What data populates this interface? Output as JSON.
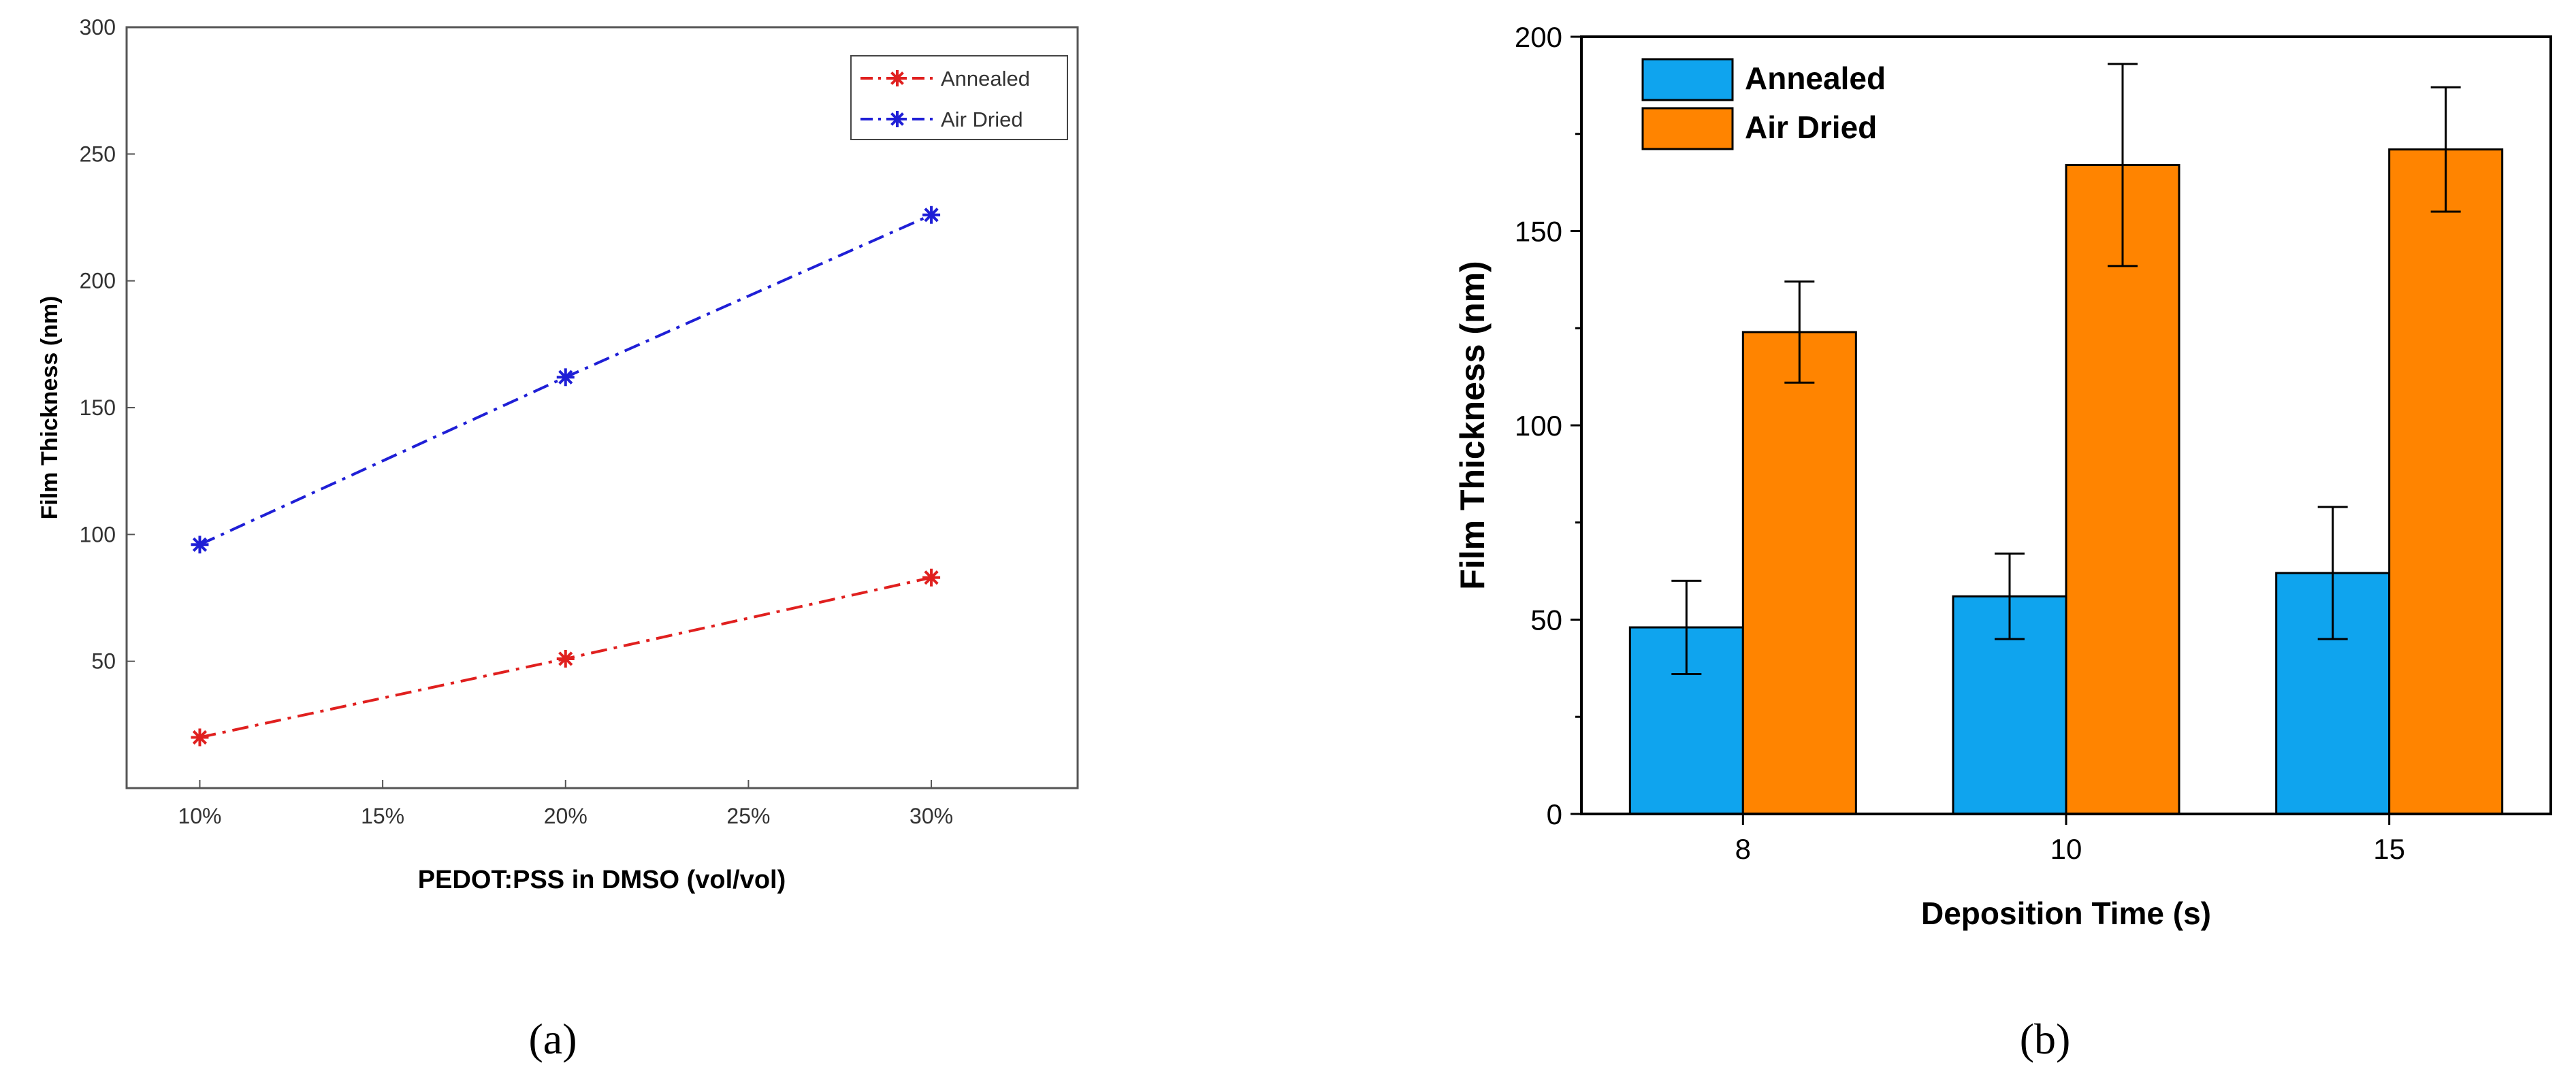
{
  "figure": {
    "caption_a": "(a)",
    "caption_b": "(b)"
  },
  "chart_data": [
    {
      "type": "line",
      "xlabel": "PEDOT:PSS in DMSO (vol/vol)",
      "ylabel": "Film Thickness (nm)",
      "x_ticks": [
        "10%",
        "15%",
        "20%",
        "25%",
        "30%"
      ],
      "x_tick_values": [
        10,
        15,
        20,
        25,
        30
      ],
      "xlim": [
        8,
        34
      ],
      "y_ticks": [
        50,
        100,
        150,
        200,
        250,
        300
      ],
      "ylim": [
        0,
        300
      ],
      "legend_position": "top-right",
      "series": [
        {
          "name": "Annealed",
          "color": "#e0201f",
          "x": [
            10,
            20,
            30
          ],
          "values": [
            20,
            51,
            83
          ]
        },
        {
          "name": "Air Dried",
          "color": "#1f1fd6",
          "x": [
            10,
            20,
            30
          ],
          "values": [
            96,
            162,
            226
          ]
        }
      ]
    },
    {
      "type": "bar",
      "xlabel": "Deposition Time (s)",
      "ylabel": "Film Thickness (nm)",
      "categories": [
        "8",
        "10",
        "15"
      ],
      "y_ticks": [
        0,
        50,
        100,
        150,
        200
      ],
      "ylim": [
        0,
        200
      ],
      "legend_position": "top-left",
      "series": [
        {
          "name": "Annealed",
          "color": "#0fa4ee",
          "values": [
            48,
            56,
            62
          ],
          "errors": [
            12,
            11,
            17
          ]
        },
        {
          "name": "Air Dried",
          "color": "#ff8400",
          "values": [
            124,
            167,
            171
          ],
          "errors": [
            13,
            26,
            16
          ]
        }
      ]
    }
  ]
}
